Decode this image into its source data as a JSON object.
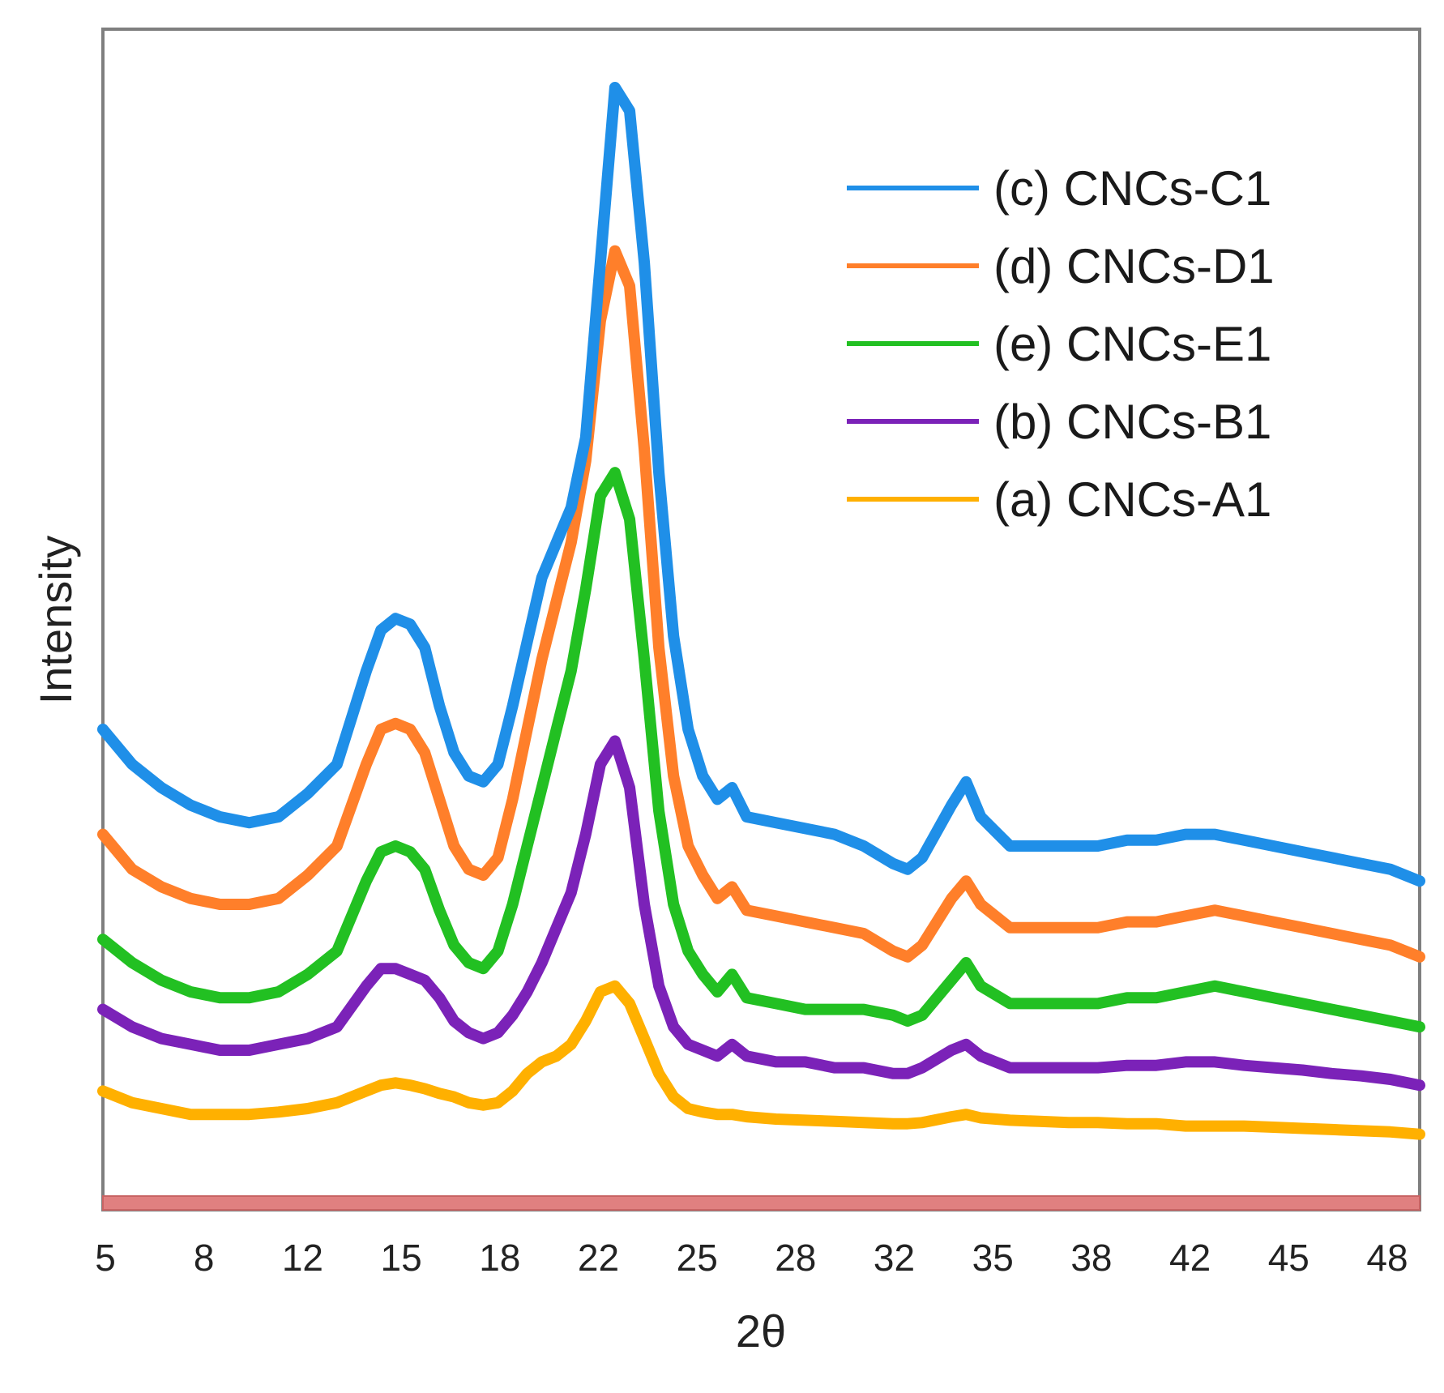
{
  "chart_data": {
    "type": "line",
    "title": "",
    "xlabel": "2θ",
    "ylabel": "Intensity",
    "xlim": [
      5,
      50
    ],
    "ylim": [
      0,
      100
    ],
    "yticks_shown": false,
    "xtick_labels": [
      "5",
      "8",
      "12",
      "15",
      "18",
      "22",
      "25",
      "28",
      "32",
      "35",
      "38",
      "42",
      "45",
      "48"
    ],
    "legend_position": "top-right",
    "baseline_color": "#e08080",
    "series": [
      {
        "name": "(c) CNCs-C1",
        "color": "#1f8fe8",
        "x": [
          5,
          6,
          7,
          8,
          9,
          10,
          11,
          12,
          13,
          14,
          14.5,
          15,
          15.5,
          16,
          16.5,
          17,
          17.5,
          18,
          18.5,
          19,
          19.5,
          20,
          20.5,
          21,
          21.5,
          22,
          22.5,
          23,
          23.5,
          24,
          24.5,
          25,
          25.5,
          26,
          26.5,
          27,
          28,
          29,
          30,
          31,
          32,
          32.5,
          33,
          34,
          34.5,
          35,
          36,
          37,
          38,
          39,
          40,
          41,
          42,
          43,
          44,
          45,
          46,
          47,
          48,
          49,
          50
        ],
        "y": [
          40,
          37,
          35,
          33.5,
          32.5,
          32,
          32.5,
          34.5,
          37,
          45,
          48.5,
          49.5,
          49,
          47,
          42,
          38,
          36,
          35.5,
          37,
          42,
          47.5,
          53,
          56,
          59,
          65,
          80,
          95,
          93,
          80,
          62,
          48,
          40,
          36,
          34,
          35,
          32.5,
          32,
          31.5,
          31,
          30,
          28.5,
          28,
          29,
          33.5,
          35.5,
          32.5,
          30,
          30,
          30,
          30,
          30.5,
          30.5,
          31,
          31,
          30.5,
          30,
          29.5,
          29,
          28.5,
          28,
          27
        ]
      },
      {
        "name": "(d) CNCs-D1",
        "color": "#ff7f2a",
        "x": [
          5,
          6,
          7,
          8,
          9,
          10,
          11,
          12,
          13,
          14,
          14.5,
          15,
          15.5,
          16,
          16.5,
          17,
          17.5,
          18,
          18.5,
          19,
          19.5,
          20,
          20.5,
          21,
          21.5,
          22,
          22.5,
          23,
          23.5,
          24,
          24.5,
          25,
          25.5,
          26,
          26.5,
          27,
          28,
          29,
          30,
          31,
          32,
          32.5,
          33,
          34,
          34.5,
          35,
          36,
          37,
          38,
          39,
          40,
          41,
          42,
          43,
          44,
          45,
          46,
          47,
          48,
          49,
          50
        ],
        "y": [
          31,
          28,
          26.5,
          25.5,
          25,
          25,
          25.5,
          27.5,
          30,
          37,
          40,
          40.5,
          40,
          38,
          34,
          30,
          28,
          27.5,
          29,
          34,
          40,
          46,
          51,
          56,
          63,
          75,
          81,
          78,
          64,
          47,
          36,
          30,
          27.5,
          25.5,
          26.5,
          24.5,
          24,
          23.5,
          23,
          22.5,
          21,
          20.5,
          21.5,
          25.5,
          27,
          25,
          23,
          23,
          23,
          23,
          23.5,
          23.5,
          24,
          24.5,
          24,
          23.5,
          23,
          22.5,
          22,
          21.5,
          20.5
        ]
      },
      {
        "name": "(e) CNCs-E1",
        "color": "#22c022",
        "x": [
          5,
          6,
          7,
          8,
          9,
          10,
          11,
          12,
          13,
          14,
          14.5,
          15,
          15.5,
          16,
          16.5,
          17,
          17.5,
          18,
          18.5,
          19,
          19.5,
          20,
          20.5,
          21,
          21.5,
          22,
          22.5,
          23,
          23.5,
          24,
          24.5,
          25,
          25.5,
          26,
          26.5,
          27,
          28,
          29,
          30,
          31,
          32,
          32.5,
          33,
          34,
          34.5,
          35,
          36,
          37,
          38,
          39,
          40,
          41,
          42,
          43,
          44,
          45,
          46,
          47,
          48,
          49,
          50
        ],
        "y": [
          22,
          20,
          18.5,
          17.5,
          17,
          17,
          17.5,
          19,
          21,
          27,
          29.5,
          30,
          29.5,
          28,
          24.5,
          21.5,
          20,
          19.5,
          21,
          25,
          30,
          35,
          40,
          45,
          52,
          60,
          62,
          58,
          46,
          33,
          25,
          21,
          19,
          17.5,
          19,
          17,
          16.5,
          16,
          16,
          16,
          15.5,
          15,
          15.5,
          18.5,
          20,
          18,
          16.5,
          16.5,
          16.5,
          16.5,
          17,
          17,
          17.5,
          18,
          17.5,
          17,
          16.5,
          16,
          15.5,
          15,
          14.5
        ]
      },
      {
        "name": "(b) CNCs-B1",
        "color": "#7b22b8",
        "x": [
          5,
          6,
          7,
          8,
          9,
          10,
          11,
          12,
          13,
          14,
          14.5,
          15,
          15.5,
          16,
          16.5,
          17,
          17.5,
          18,
          18.5,
          19,
          19.5,
          20,
          20.5,
          21,
          21.5,
          22,
          22.5,
          23,
          23.5,
          24,
          24.5,
          25,
          25.5,
          26,
          26.5,
          27,
          28,
          29,
          30,
          31,
          32,
          32.5,
          33,
          34,
          34.5,
          35,
          36,
          37,
          38,
          39,
          40,
          41,
          42,
          43,
          44,
          45,
          46,
          47,
          48,
          49,
          50
        ],
        "y": [
          16,
          14.5,
          13.5,
          13,
          12.5,
          12.5,
          13,
          13.5,
          14.5,
          18,
          19.5,
          19.5,
          19,
          18.5,
          17,
          15,
          14,
          13.5,
          14,
          15.5,
          17.5,
          20,
          23,
          26,
          31,
          37,
          39,
          35,
          25,
          18,
          14.5,
          13,
          12.5,
          12,
          13,
          12,
          11.5,
          11.5,
          11,
          11,
          10.5,
          10.5,
          11,
          12.5,
          13,
          12,
          11,
          11,
          11,
          11,
          11.2,
          11.2,
          11.5,
          11.5,
          11.2,
          11,
          10.8,
          10.5,
          10.3,
          10,
          9.5
        ]
      },
      {
        "name": "(a) CNCs-A1",
        "color": "#ffb000",
        "x": [
          5,
          6,
          7,
          8,
          9,
          10,
          11,
          12,
          13,
          14,
          14.5,
          15,
          15.5,
          16,
          16.5,
          17,
          17.5,
          18,
          18.5,
          19,
          19.5,
          20,
          20.5,
          21,
          21.5,
          22,
          22.5,
          23,
          23.5,
          24,
          24.5,
          25,
          25.5,
          26,
          26.5,
          27,
          28,
          29,
          30,
          31,
          32,
          32.5,
          33,
          34,
          34.5,
          35,
          36,
          37,
          38,
          39,
          40,
          41,
          42,
          43,
          44,
          45,
          46,
          47,
          48,
          49,
          50
        ],
        "y": [
          9,
          8,
          7.5,
          7,
          7,
          7,
          7.2,
          7.5,
          8,
          9,
          9.5,
          9.7,
          9.5,
          9.2,
          8.8,
          8.5,
          8,
          7.8,
          8,
          9,
          10.5,
          11.5,
          12,
          13,
          15,
          17.5,
          18,
          16.5,
          13.5,
          10.5,
          8.5,
          7.5,
          7.2,
          7,
          7,
          6.8,
          6.6,
          6.5,
          6.4,
          6.3,
          6.2,
          6.2,
          6.3,
          6.8,
          7,
          6.7,
          6.5,
          6.4,
          6.3,
          6.3,
          6.2,
          6.2,
          6,
          6,
          6,
          5.9,
          5.8,
          5.7,
          5.6,
          5.5,
          5.3
        ]
      }
    ]
  }
}
